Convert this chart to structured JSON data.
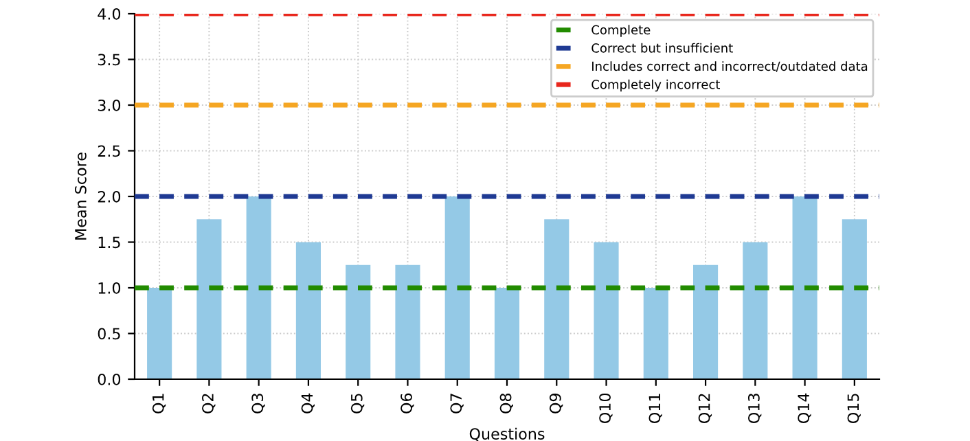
{
  "chart_data": {
    "type": "bar",
    "xlabel": "Questions",
    "ylabel": "Mean Score",
    "categories": [
      "Q1",
      "Q2",
      "Q3",
      "Q4",
      "Q5",
      "Q6",
      "Q7",
      "Q8",
      "Q9",
      "Q10",
      "Q11",
      "Q12",
      "Q13",
      "Q14",
      "Q15"
    ],
    "values": [
      1.0,
      1.75,
      2.0,
      1.5,
      1.25,
      1.25,
      2.0,
      1.0,
      1.75,
      1.5,
      1.0,
      1.25,
      1.5,
      2.0,
      1.75
    ],
    "color": "#94c9e6",
    "ylim": [
      0,
      4
    ],
    "yticks": [
      {
        "value": 0,
        "label": "0.0"
      },
      0.5,
      {
        "value": 1,
        "label": "1.0"
      },
      1.5,
      {
        "value": 2,
        "label": "2.0"
      },
      2.5,
      {
        "value": 3,
        "label": "3.0"
      },
      3.5,
      {
        "value": 4,
        "label": "4.0"
      }
    ],
    "ref_lines": [
      {
        "axis": "y",
        "value": 1,
        "label": "Complete",
        "color": "#228b00",
        "line_style": "dashed"
      },
      {
        "axis": "y",
        "value": 2,
        "label": "Correct but insufficient",
        "color": "#1f3a93",
        "line_style": "dashed"
      },
      {
        "axis": "y",
        "value": 3,
        "label": "Includes correct and incorrect/outdated data",
        "color": "#f5a623",
        "line_style": "dashed"
      },
      {
        "axis": "y",
        "value": 4,
        "label": "Completely incorrect",
        "color": "#e8261c",
        "line_style": "dashed"
      }
    ],
    "grid": true,
    "legend": "top right"
  }
}
